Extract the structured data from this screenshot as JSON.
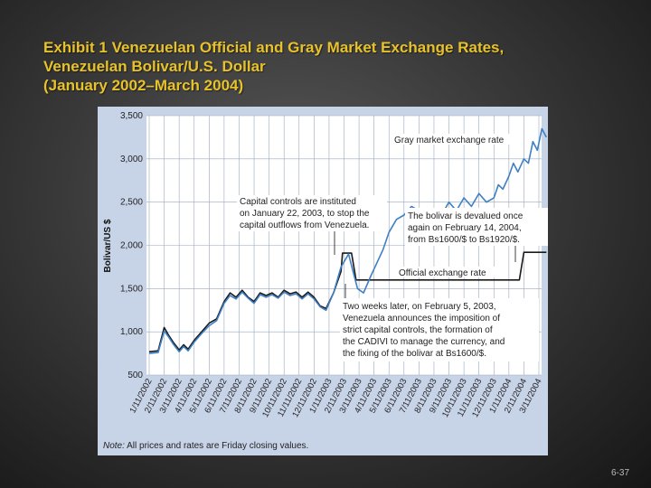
{
  "slide": {
    "title_lines": [
      "Exhibit 1  Venezuelan Official and Gray Market Exchange Rates,",
      "Venezuelan Bolivar/U.S. Dollar",
      "(January 2002–March 2004)"
    ],
    "page_number": "6-37",
    "title_color": "#e8c22a"
  },
  "chart_data": {
    "type": "line",
    "ylabel": "Bolivar/US $",
    "ylim": [
      500,
      3500
    ],
    "yticks": [
      "3,500",
      "3,000",
      "2,500",
      "2,000",
      "1,500",
      "1,000",
      "500"
    ],
    "ytick_values": [
      3500,
      3000,
      2500,
      2000,
      1500,
      1000,
      500
    ],
    "xticks": [
      "1/11/2002",
      "2/11/2002",
      "3/11/2002",
      "4/11/2002",
      "5/11/2002",
      "6/11/2002",
      "7/11/2002",
      "8/11/2002",
      "9/11/2002",
      "10/11/2002",
      "11/11/2002",
      "12/11/2002",
      "1/11/2003",
      "2/11/2003",
      "3/11/2003",
      "4/11/2003",
      "5/11/2003",
      "6/11/2003",
      "7/11/2003",
      "8/11/2003",
      "9/11/2003",
      "10/11/2003",
      "11/11/2003",
      "12/11/2003",
      "1/11/2004",
      "2/11/2004",
      "3/11/2004"
    ],
    "grid": true,
    "series": [
      {
        "name": "Official exchange rate",
        "color": "#1a1a1a",
        "x": [
          0,
          0.6,
          1.0,
          1.3,
          1.6,
          2.0,
          2.3,
          2.6,
          3.0,
          3.5,
          4.0,
          4.5,
          5.0,
          5.4,
          5.8,
          6.2,
          6.6,
          7.0,
          7.4,
          7.8,
          8.2,
          8.6,
          9.0,
          9.4,
          9.8,
          10.2,
          10.6,
          11.0,
          11.4,
          11.8,
          12.3,
          12.8,
          12.9,
          13.2,
          13.5,
          13.8,
          16,
          19,
          22,
          24,
          24.7,
          25.0,
          26.5
        ],
        "y": [
          770,
          780,
          1050,
          960,
          880,
          790,
          850,
          800,
          900,
          1000,
          1100,
          1150,
          1350,
          1450,
          1400,
          1480,
          1400,
          1350,
          1450,
          1420,
          1450,
          1400,
          1480,
          1440,
          1460,
          1400,
          1460,
          1400,
          1300,
          1270,
          1450,
          1700,
          1910,
          1910,
          1910,
          1600,
          1600,
          1600,
          1600,
          1600,
          1600,
          1920,
          1920
        ]
      },
      {
        "name": "Gray market exchange rate",
        "color": "#3f7fc4",
        "x": [
          0,
          0.6,
          1.0,
          1.3,
          1.6,
          2.0,
          2.3,
          2.6,
          3.0,
          3.5,
          4.0,
          4.5,
          5.0,
          5.4,
          5.8,
          6.2,
          6.6,
          7.0,
          7.4,
          7.8,
          8.2,
          8.6,
          9.0,
          9.4,
          9.8,
          10.2,
          10.6,
          11.0,
          11.4,
          11.8,
          12.3,
          12.8,
          13.3,
          13.6,
          13.9,
          14.3,
          14.8,
          15.2,
          15.6,
          16.0,
          16.5,
          17.0,
          17.5,
          18.0,
          18.5,
          19.0,
          19.5,
          20.0,
          20.5,
          21.0,
          21.5,
          22.0,
          22.5,
          23.0,
          23.3,
          23.6,
          24.0,
          24.3,
          24.6,
          25.0,
          25.3,
          25.6,
          25.9,
          26.2,
          26.5
        ],
        "y": [
          750,
          760,
          1010,
          940,
          860,
          770,
          830,
          780,
          880,
          980,
          1070,
          1130,
          1330,
          1420,
          1380,
          1460,
          1390,
          1330,
          1430,
          1400,
          1430,
          1390,
          1460,
          1420,
          1440,
          1380,
          1440,
          1380,
          1290,
          1250,
          1450,
          1750,
          1900,
          1700,
          1500,
          1450,
          1650,
          1800,
          1950,
          2150,
          2300,
          2350,
          2450,
          2400,
          2300,
          2400,
          2350,
          2500,
          2400,
          2550,
          2450,
          2600,
          2500,
          2550,
          2700,
          2650,
          2800,
          2950,
          2850,
          3000,
          2950,
          3200,
          3100,
          3350,
          3250
        ]
      }
    ],
    "annotations": [
      "Gray market exchange rate",
      "Capital controls are instituted",
      "on January 22, 2003, to stop the",
      "capital outflows from Venezuela.",
      "The bolivar is devalued once",
      "again on February 14, 2004,",
      "from Bs1600/$ to Bs1920/$.",
      "Official exchange rate",
      "Two weeks later, on February 5, 2003,",
      "Venezuela announces the imposition of",
      "strict capital controls, the formation of",
      "the CADIVI to manage the currency, and",
      "the fixing of the bolivar at Bs1600/$."
    ],
    "note_label": "Note:",
    "note_text": " All prices and rates are Friday closing values."
  }
}
